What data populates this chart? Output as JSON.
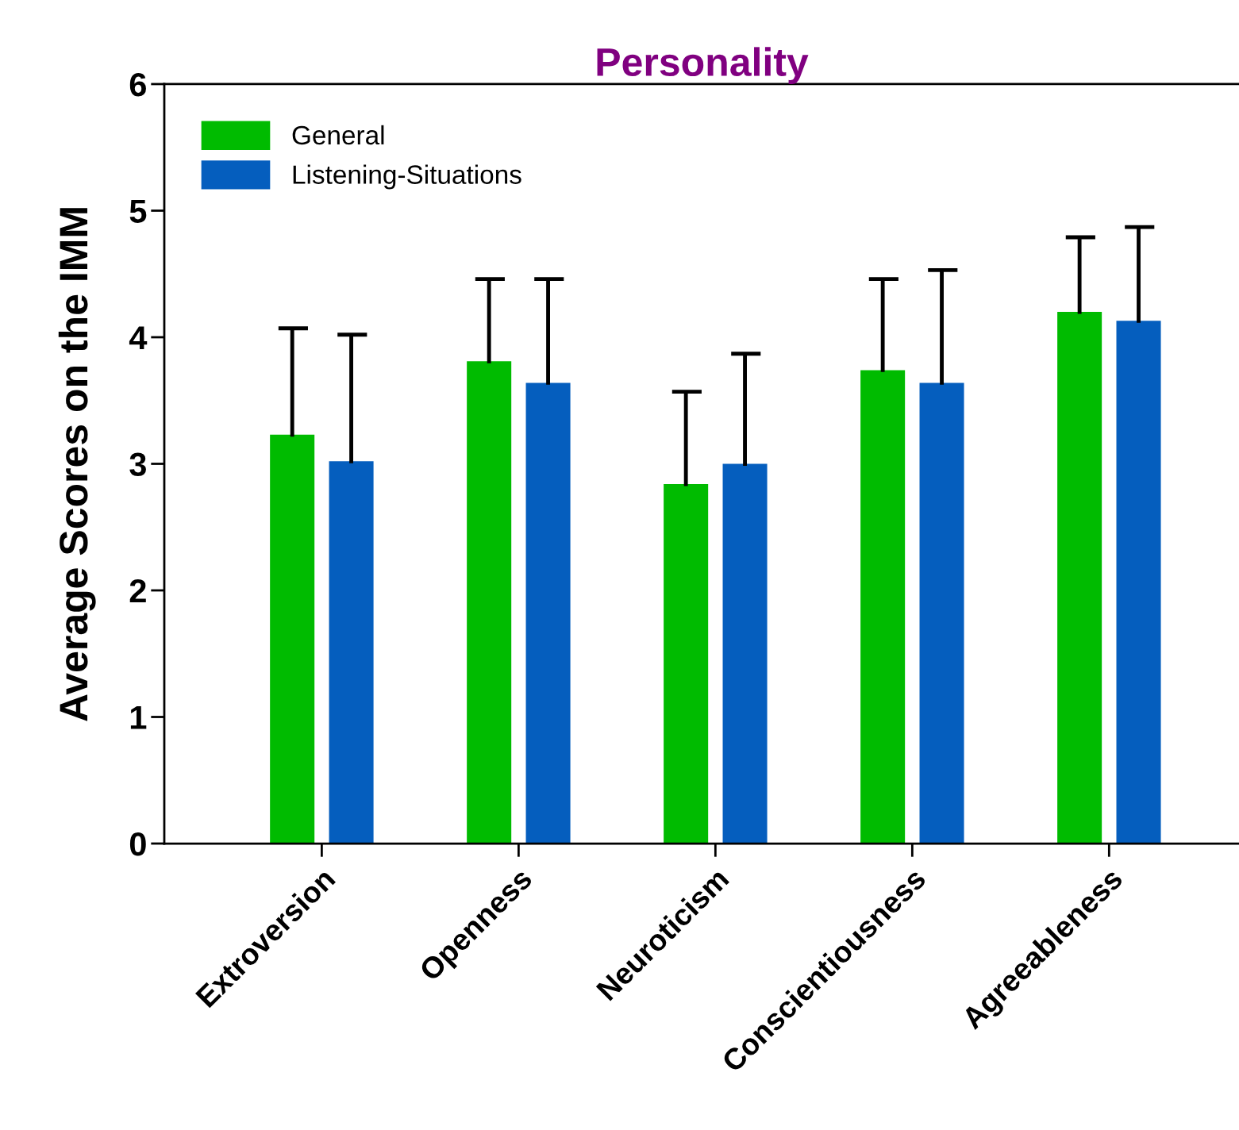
{
  "chart_data": {
    "type": "bar",
    "title": "Personality",
    "ylabel": "Average Scores on the IMM",
    "categories": [
      "Extroversion",
      "Openness",
      "Neuroticism",
      "Conscientiousness",
      "Agreeableness"
    ],
    "series": [
      {
        "name": "General",
        "color": "#00bb00",
        "values": [
          3.23,
          3.81,
          2.84,
          3.74,
          4.2
        ],
        "errors": [
          [
            3.23,
            4.07
          ],
          [
            3.81,
            4.46
          ],
          [
            2.84,
            3.57
          ],
          [
            3.74,
            4.46
          ],
          [
            4.2,
            4.79
          ]
        ]
      },
      {
        "name": "Listening-Situations",
        "color": "#055ebe",
        "values": [
          3.02,
          3.64,
          3.0,
          3.64,
          4.13
        ],
        "errors": [
          [
            3.02,
            4.02
          ],
          [
            3.64,
            4.46
          ],
          [
            3.0,
            3.87
          ],
          [
            3.64,
            4.53
          ],
          [
            4.13,
            4.87
          ]
        ]
      }
    ],
    "ylim": [
      0,
      6
    ],
    "yticks": [
      0,
      1,
      2,
      3,
      4,
      5,
      6
    ],
    "grid": false,
    "legend": "top left"
  }
}
